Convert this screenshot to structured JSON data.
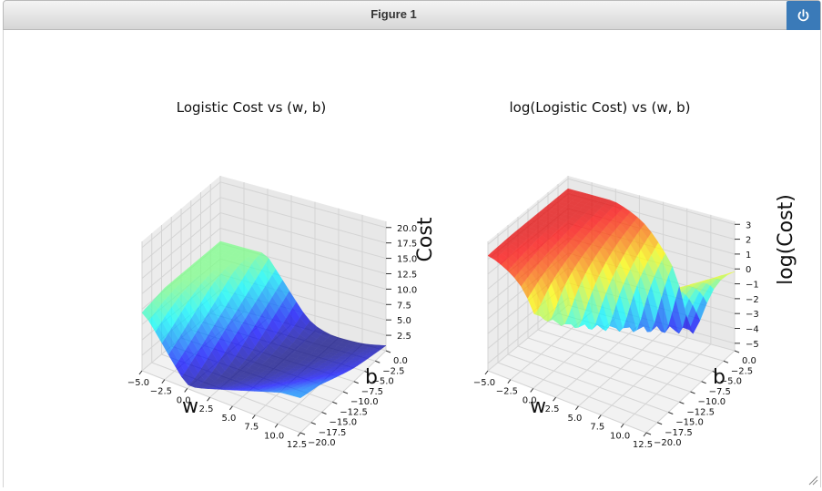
{
  "window": {
    "title": "Figure 1",
    "power_icon": "power-icon"
  },
  "chart_data": [
    {
      "type": "surface3d",
      "title": "Logistic Cost vs (w, b)",
      "xlabel": "w",
      "ylabel": "b",
      "zlabel": "Cost",
      "xticks": [
        "−5.0",
        "−2.5",
        "0.0",
        "2.5",
        "5.0",
        "7.5",
        "10.0",
        "12.5"
      ],
      "yticks": [
        "0.0",
        "−2.5",
        "−5.0",
        "−7.5",
        "−10.0",
        "−12.5",
        "−15.0",
        "−17.5",
        "−20.0"
      ],
      "zticks": [
        "2.5",
        "5.0",
        "7.5",
        "10.0",
        "12.5",
        "15.0",
        "17.5",
        "20.0"
      ],
      "xlim": [
        -5,
        12.5
      ],
      "ylim": [
        -20,
        0
      ],
      "zlim": [
        0,
        21
      ],
      "colormap": "jet",
      "corner_values": {
        "w_min_b_max": 19.5,
        "w_max_b_max": 5.0,
        "minimum": 0.3
      }
    },
    {
      "type": "surface3d",
      "title": "log(Logistic Cost) vs (w, b)",
      "xlabel": "w",
      "ylabel": "b",
      "zlabel": "log(Cost)",
      "xticks": [
        "−5.0",
        "−2.5",
        "0.0",
        "2.5",
        "5.0",
        "7.5",
        "10.0",
        "12.5"
      ],
      "yticks": [
        "0.0",
        "−2.5",
        "−5.0",
        "−7.5",
        "−10.0",
        "−12.5",
        "−15.0",
        "−17.5",
        "−20.0"
      ],
      "zticks": [
        "3",
        "2",
        "1",
        "0",
        "−1",
        "−2",
        "−3",
        "−4",
        "−5"
      ],
      "xlim": [
        -5,
        12.5
      ],
      "ylim": [
        -20,
        0
      ],
      "zlim": [
        -5.5,
        3.2
      ],
      "colormap": "jet",
      "corner_values": {
        "w_min_b_max": 3.0,
        "w_max_b_max": 1.6,
        "minimum": -5.0
      }
    }
  ]
}
